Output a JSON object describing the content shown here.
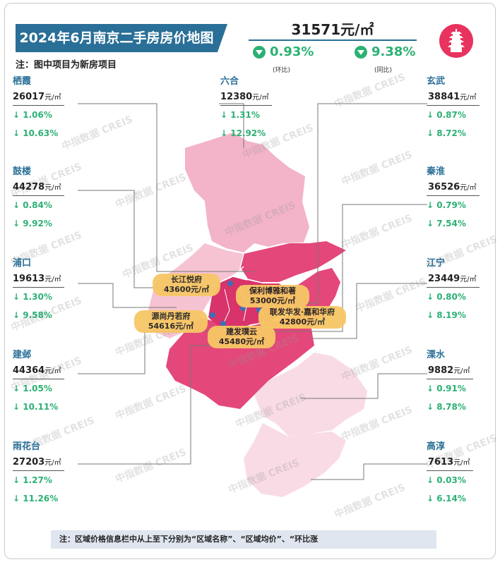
{
  "title": "2024年6月南京二手房房价地图",
  "subtitle": "注：图中项目为新房项目",
  "city_average": {
    "price": "31571元/㎡",
    "mom_change": "0.93%",
    "mom_label": "(环比)",
    "yoy_change": "9.38%",
    "yoy_label": "(同比)"
  },
  "watermark": "中指数据 CREIS",
  "districts_left": [
    {
      "name": "栖霞",
      "price": "26017",
      "unit": "元/㎡",
      "mom": "↓ 1.06%",
      "yoy": "↓ 10.63%"
    },
    {
      "name": "鼓楼",
      "price": "44278",
      "unit": "元/㎡",
      "mom": "↓ 0.84%",
      "yoy": "↓ 9.92%"
    },
    {
      "name": "浦口",
      "price": "19613",
      "unit": "元/㎡",
      "mom": "↓ 1.30%",
      "yoy": "↓ 9.58%"
    },
    {
      "name": "建邺",
      "price": "44364",
      "unit": "元/㎡",
      "mom": "↓ 1.05%",
      "yoy": "↓ 10.11%"
    },
    {
      "name": "雨花台",
      "price": "27203",
      "unit": "元/㎡",
      "mom": "↓ 1.27%",
      "yoy": "↓ 11.26%"
    }
  ],
  "district_center": {
    "name": "六合",
    "price": "12380",
    "unit": "元/㎡",
    "mom": "↓ 1.31%",
    "yoy": "↓ 12.92%"
  },
  "districts_right": [
    {
      "name": "玄武",
      "price": "38841",
      "unit": "元/㎡",
      "mom": "↓ 0.87%",
      "yoy": "↓ 8.72%"
    },
    {
      "name": "秦淮",
      "price": "36526",
      "unit": "元/㎡",
      "mom": "↓ 0.79%",
      "yoy": "↓ 7.54%"
    },
    {
      "name": "江宁",
      "price": "23449",
      "unit": "元/㎡",
      "mom": "↓ 0.80%",
      "yoy": "↓ 8.19%"
    },
    {
      "name": "溧水",
      "price": "9882",
      "unit": "元/㎡",
      "mom": "↓ 0.91%",
      "yoy": "↓ 8.78%"
    },
    {
      "name": "高淳",
      "price": "7613",
      "unit": "元/㎡",
      "mom": "↓ 0.03%",
      "yoy": "↓ 6.14%"
    }
  ],
  "projects": [
    {
      "name": "长江悦府",
      "price": "43600元/㎡"
    },
    {
      "name": "保利博雅和著",
      "price": "53000元/㎡"
    },
    {
      "name": "源尚丹若府",
      "price": "54616元/㎡"
    },
    {
      "name": "联发华发·嘉和华府",
      "price": "42800元/㎡"
    },
    {
      "name": "建发璞云",
      "price": "45480元/㎡"
    }
  ],
  "bottom_note": "注：区域价格信息栏中从上至下分别为“区域名称”、“区域均价”、“环比涨",
  "colors": {
    "title_bg": "#2a6f97",
    "down_green": "#2bb173",
    "map_dark": "#e4477a",
    "map_mid": "#ef8fb0",
    "map_light": "#f6c3d3",
    "map_pale": "#f9dbe5",
    "project_bg": "#f7c766",
    "logo": "#e8335e"
  }
}
